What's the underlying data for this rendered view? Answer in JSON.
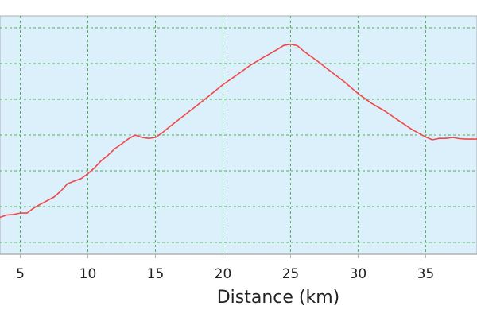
{
  "chart_data": {
    "type": "line",
    "title": "",
    "xlabel": "Distance (km)",
    "ylabel": "",
    "xlim": [
      3.5,
      38.8
    ],
    "ylim": [
      0,
      100
    ],
    "x_ticks": [
      5,
      10,
      15,
      20,
      25,
      30,
      35
    ],
    "x_tick_labels": [
      "5",
      "10",
      "15",
      "20",
      "25",
      "30",
      "35"
    ],
    "y_gridlines": [
      5,
      20,
      35,
      50,
      65,
      80,
      95
    ],
    "grid": true,
    "legend": "none",
    "colors": {
      "plot_background": "#dcf0fb",
      "line": "#f04848",
      "grid": "#4caf50",
      "axis": "#b0b0b0"
    },
    "series": [
      {
        "x": [
          3.5,
          4.0,
          4.5,
          5.0,
          5.5,
          6.0,
          6.5,
          7.0,
          7.5,
          8.0,
          8.5,
          9.0,
          9.5,
          10.0,
          10.5,
          11.0,
          11.5,
          12.0,
          12.5,
          13.0,
          13.5,
          14.0,
          14.5,
          15.0,
          15.5,
          16.0,
          17.0,
          18.0,
          19.0,
          20.0,
          21.0,
          22.0,
          23.0,
          24.0,
          24.5,
          25.0,
          25.5,
          26.0,
          27.0,
          28.0,
          29.0,
          30.0,
          31.0,
          32.0,
          33.0,
          34.0,
          35.0,
          35.5,
          36.0,
          36.5,
          37.0,
          37.5,
          38.0,
          38.8
        ],
        "y": [
          15.5,
          16.5,
          16.7,
          17.3,
          17.3,
          19.4,
          21.0,
          22.5,
          24.0,
          26.5,
          29.6,
          30.7,
          31.7,
          33.8,
          36.3,
          39.3,
          41.6,
          44.3,
          46.3,
          48.4,
          50.0,
          49.0,
          48.6,
          49.0,
          50.9,
          53.3,
          57.7,
          62.1,
          66.6,
          71.2,
          75.1,
          79.2,
          82.6,
          85.8,
          87.6,
          88.1,
          87.5,
          85.1,
          81.0,
          76.6,
          72.3,
          67.4,
          63.3,
          60.0,
          56.1,
          52.3,
          49.2,
          48.0,
          48.6,
          48.6,
          49.0,
          48.5,
          48.3,
          48.3
        ]
      }
    ]
  }
}
